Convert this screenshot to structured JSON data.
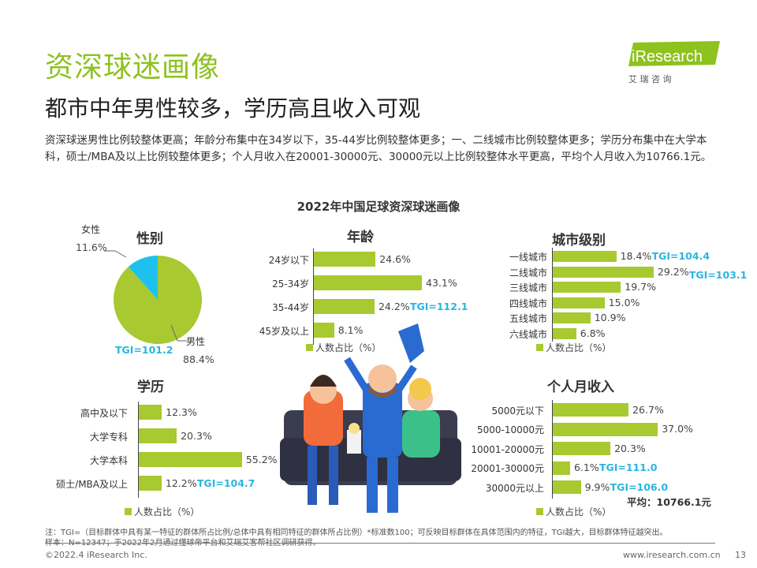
{
  "title": "资深球迷画像",
  "subtitle": "都市中年男性较多，学历高且收入可观",
  "paragraph": "资深球迷男性比例较整体更高；年龄分布集中在34岁以下，35-44岁比例较整体更多；一、二线城市比例较整体更多；学历分布集中在大学本科，硕士/MBA及以上比例较整体更多；个人月收入在20001-30000元、30000元以上比例较整体水平更高，平均个人月收入为10766.1元。",
  "logo": {
    "brand": "iResearch",
    "sub": "艾 瑞 咨 询"
  },
  "colors": {
    "bar": "#a8c92f",
    "tgi": "#2bb5e0",
    "title": "#8dc21f",
    "pie_female": "#1ec1ee"
  },
  "chart_data": [
    {
      "type": "pie",
      "title": "2022年中国足球资深球迷画像",
      "subtitle": "性别",
      "slices": [
        {
          "label": "男性",
          "value": 88.4,
          "display": "88.4%"
        },
        {
          "label": "女性",
          "value": 11.6,
          "display": "11.6%"
        }
      ],
      "tgi": "TGI=101.2"
    },
    {
      "type": "bar",
      "orientation": "horizontal",
      "title": "年龄",
      "legend": "人数占比（%）",
      "categories": [
        "24岁以下",
        "25-34岁",
        "35-44岁",
        "45岁及以上"
      ],
      "values": [
        24.6,
        43.1,
        24.2,
        8.1
      ],
      "labels": [
        "24.6%",
        "43.1%",
        "24.2%",
        "8.1%"
      ],
      "tgi": [
        "",
        "",
        "TGI=112.1",
        ""
      ]
    },
    {
      "type": "bar",
      "orientation": "horizontal",
      "title": "城市级别",
      "legend": "人数占比（%）",
      "categories": [
        "一线城市",
        "二线城市",
        "三线城市",
        "四线城市",
        "五线城市",
        "六线城市"
      ],
      "values": [
        18.4,
        29.2,
        19.7,
        15.0,
        10.9,
        6.8
      ],
      "labels": [
        "18.4%",
        "29.2%",
        "19.7%",
        "15.0%",
        "10.9%",
        "6.8%"
      ],
      "tgi": [
        "TGI=104.4",
        "TGI=103.1",
        "",
        "",
        "",
        ""
      ]
    },
    {
      "type": "bar",
      "orientation": "horizontal",
      "title": "学历",
      "legend": "人数占比（%）",
      "categories": [
        "高中及以下",
        "大学专科",
        "大学本科",
        "硕士/MBA及以上"
      ],
      "values": [
        12.3,
        20.3,
        55.2,
        12.2
      ],
      "labels": [
        "12.3%",
        "20.3%",
        "55.2%",
        "12.2%"
      ],
      "tgi": [
        "",
        "",
        "",
        "TGI=104.7"
      ]
    },
    {
      "type": "bar",
      "orientation": "horizontal",
      "title": "个人月收入",
      "legend": "人数占比（%）",
      "categories": [
        "5000元以下",
        "5000-10000元",
        "10001-20000元",
        "20001-30000元",
        "30000元以上"
      ],
      "values": [
        26.7,
        37.0,
        20.3,
        6.1,
        9.9
      ],
      "labels": [
        "26.7%",
        "37.0%",
        "20.3%",
        "6.1%",
        "9.9%"
      ],
      "tgi": [
        "",
        "",
        "",
        "TGI=111.0",
        "TGI=106.0"
      ],
      "average": "平均：10766.1元"
    }
  ],
  "notes": [
    "注：TGI=（目标群体中具有某一特征的群体所占比例/总体中具有相同特征的群体所占比例）*标准数100；可反映目标群体在具体范围内的特征，TGI越大，目标群体特征越突出。",
    "样本：N=12347；于2022年2月通过懂球帝平台和艾瑞艾客帮社区调研获得。"
  ],
  "footer": {
    "copyright": "©2022.4 iResearch Inc.",
    "website": "www.iresearch.com.cn",
    "page": "13"
  }
}
